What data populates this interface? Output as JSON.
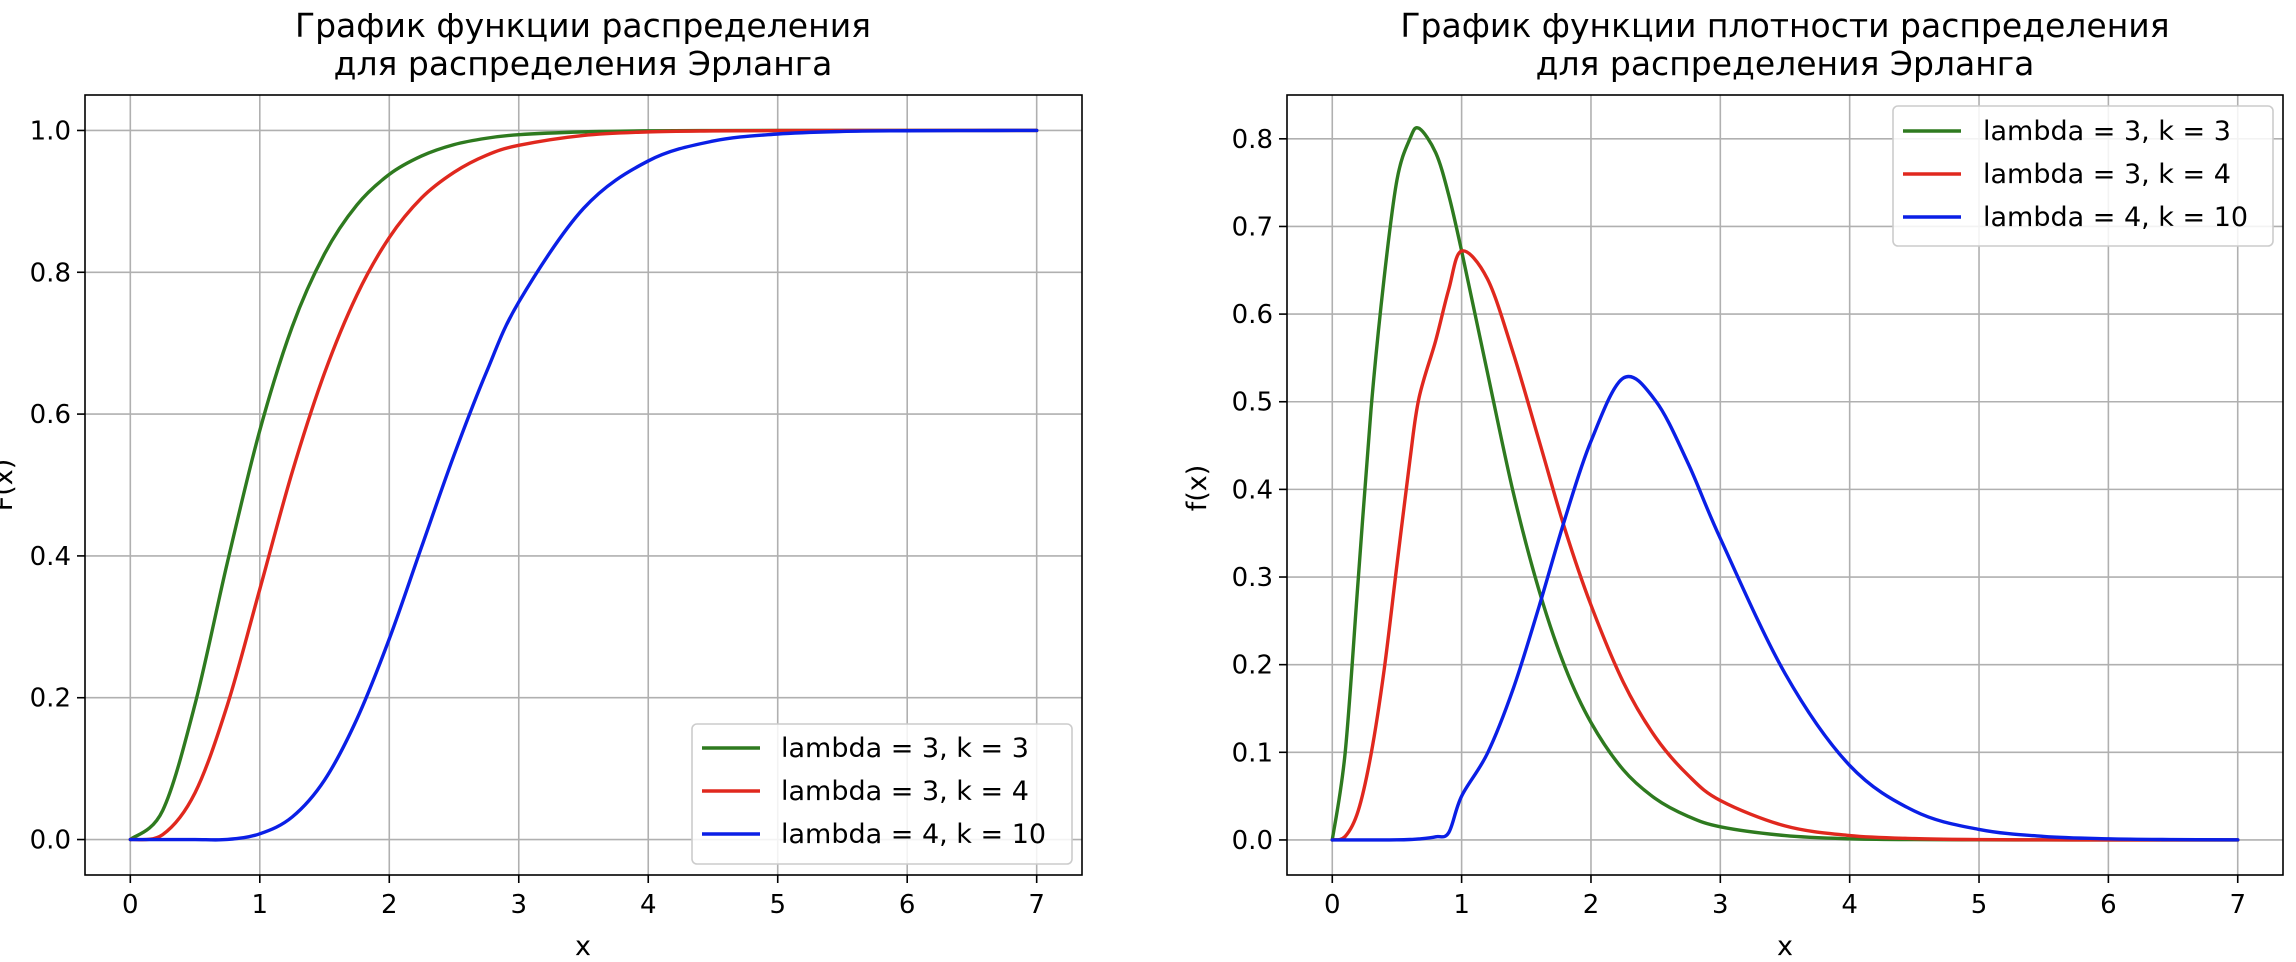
{
  "chart_data": [
    {
      "type": "line",
      "title": [
        "График функции распределения",
        "для распределения Эрланга"
      ],
      "xlabel": "x",
      "ylabel": "F(x)",
      "xlim": [
        -0.35,
        7.35
      ],
      "ylim": [
        -0.05,
        1.05
      ],
      "xticks": [
        0,
        1,
        2,
        3,
        4,
        5,
        6,
        7
      ],
      "yticks": [
        0.0,
        0.2,
        0.4,
        0.6,
        0.8,
        1.0
      ],
      "ytick_labels": [
        "0.0",
        "0.2",
        "0.4",
        "0.6",
        "0.8",
        "1.0"
      ],
      "grid": true,
      "legend_position": "lower-right",
      "x": [
        0,
        0.25,
        0.5,
        0.75,
        1,
        1.25,
        1.5,
        1.75,
        2,
        2.25,
        2.5,
        2.75,
        3,
        3.5,
        4,
        4.5,
        5,
        5.5,
        6,
        6.5,
        7
      ],
      "series": [
        {
          "name": "lambda = 3, k = 3",
          "color": "#2e7a1f",
          "values": [
            0,
            0.041,
            0.191,
            0.391,
            0.577,
            0.723,
            0.826,
            0.895,
            0.938,
            0.964,
            0.98,
            0.989,
            0.994,
            0.998,
            0.9995,
            0.9999,
            1.0,
            1.0,
            1.0,
            1.0,
            1.0
          ]
        },
        {
          "name": "lambda = 3, k = 4",
          "color": "#e0281e",
          "values": [
            0,
            0.007,
            0.066,
            0.19,
            0.353,
            0.518,
            0.658,
            0.768,
            0.849,
            0.905,
            0.941,
            0.965,
            0.979,
            0.993,
            0.998,
            0.9994,
            0.9998,
            1.0,
            1.0,
            1.0,
            1.0
          ]
        },
        {
          "name": "lambda = 4, k = 10",
          "color": "#0a1fe6",
          "values": [
            0,
            0,
            0,
            0.0001,
            0.0081,
            0.0318,
            0.0839,
            0.17,
            0.283,
            0.413,
            0.542,
            0.659,
            0.758,
            0.89,
            0.957,
            0.985,
            0.995,
            0.9986,
            0.9996,
            0.9999,
            1.0
          ]
        }
      ]
    },
    {
      "type": "line",
      "title": [
        "График функции плотности распределения",
        "для распределения Эрланга"
      ],
      "xlabel": "x",
      "ylabel": "f(x)",
      "xlim": [
        -0.35,
        7.35
      ],
      "ylim": [
        -0.04,
        0.85
      ],
      "xticks": [
        0,
        1,
        2,
        3,
        4,
        5,
        6,
        7
      ],
      "yticks": [
        0.0,
        0.1,
        0.2,
        0.3,
        0.4,
        0.5,
        0.6,
        0.7,
        0.8
      ],
      "ytick_labels": [
        "0.0",
        "0.1",
        "0.2",
        "0.3",
        "0.4",
        "0.5",
        "0.6",
        "0.7",
        "0.8"
      ],
      "grid": true,
      "legend_position": "upper-right",
      "x": [
        0,
        0.1,
        0.2,
        0.3,
        0.4,
        0.5,
        0.6,
        0.67,
        0.8,
        0.9,
        1.0,
        1.2,
        1.4,
        1.6,
        1.8,
        2.0,
        2.25,
        2.5,
        2.75,
        3.0,
        3.5,
        4.0,
        4.5,
        5.0,
        5.5,
        6.0,
        6.5,
        7.0
      ],
      "series": [
        {
          "name": "lambda = 3, k = 3",
          "color": "#2e7a1f",
          "values": [
            0,
            0.1,
            0.296,
            0.492,
            0.64,
            0.753,
            0.8,
            0.812,
            0.784,
            0.736,
            0.672,
            0.533,
            0.396,
            0.284,
            0.197,
            0.134,
            0.08,
            0.047,
            0.027,
            0.015,
            0.005,
            0.0013,
            0.0004,
            0.0001,
            0,
            0,
            0,
            0
          ]
        },
        {
          "name": "lambda = 3, k = 4",
          "color": "#e0281e",
          "values": [
            0,
            0.004,
            0.033,
            0.098,
            0.193,
            0.314,
            0.433,
            0.504,
            0.57,
            0.628,
            0.672,
            0.64,
            0.555,
            0.455,
            0.354,
            0.268,
            0.18,
            0.117,
            0.074,
            0.045,
            0.016,
            0.005,
            0.0015,
            0.0004,
            0.0001,
            0,
            0,
            0
          ]
        },
        {
          "name": "lambda = 4, k = 10",
          "color": "#0a1fe6",
          "values": [
            0,
            0,
            0,
            0,
            0,
            0.0001,
            0.0005,
            0.0011,
            0.0036,
            0.0083,
            0.05,
            0.099,
            0.173,
            0.267,
            0.367,
            0.455,
            0.527,
            0.501,
            0.43,
            0.344,
            0.19,
            0.085,
            0.033,
            0.012,
            0.004,
            0.0013,
            0.0004,
            0.0001
          ]
        }
      ]
    }
  ]
}
